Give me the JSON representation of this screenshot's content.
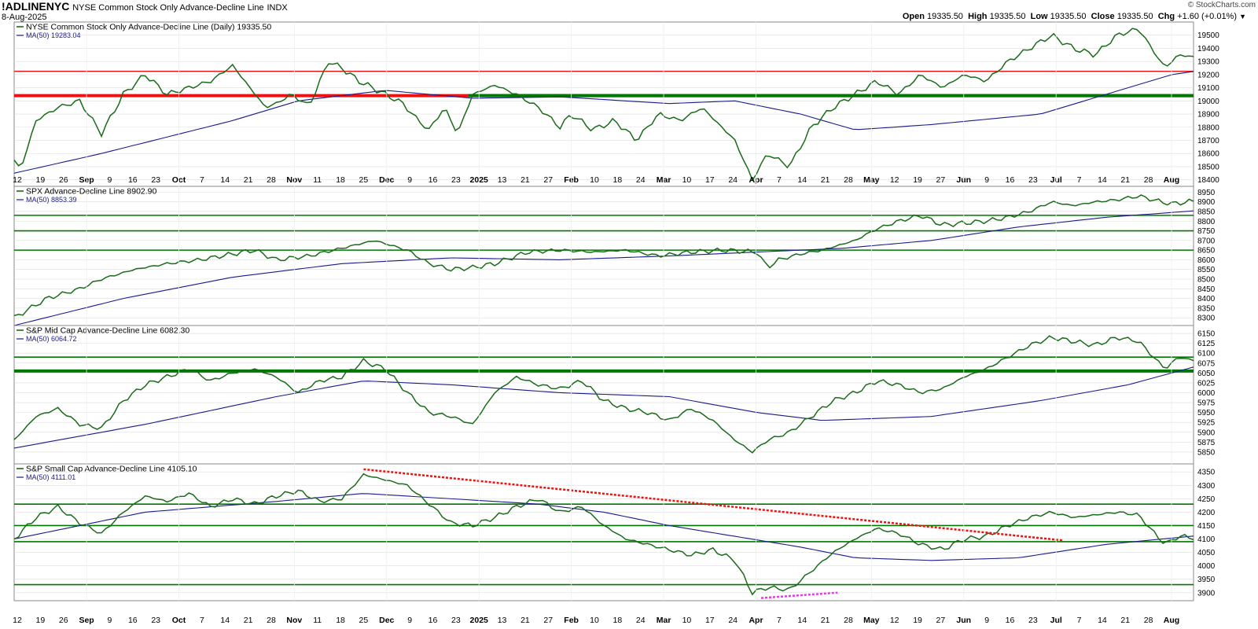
{
  "header": {
    "symbol": "!ADLINENYC",
    "description": "NYSE Common Stock Only Advance-Decline Line",
    "exchange": "INDX",
    "date": "8-Aug-2025",
    "copyright": "© StockCharts.com",
    "ohlc": {
      "open_label": "Open",
      "open": "19335.50",
      "high_label": "High",
      "high": "19335.50",
      "low_label": "Low",
      "low": "19335.50",
      "close_label": "Close",
      "close": "19335.50",
      "chg_label": "Chg",
      "chg": "+1.60 (+0.01%)"
    }
  },
  "colors": {
    "line": "#1a6b1a",
    "ma": "#1a1a8c",
    "support_green": "#007700",
    "resistance_red": "#ee1111",
    "trend_red": "#ee1111",
    "trend_magenta": "#ee33ee",
    "grid": "#dddddd"
  },
  "x_axis": {
    "ticks": [
      "12",
      "19",
      "26",
      "Sep",
      "9",
      "16",
      "23",
      "Oct",
      "7",
      "14",
      "21",
      "28",
      "Nov",
      "11",
      "18",
      "25",
      "Dec",
      "9",
      "16",
      "23",
      "2025",
      "13",
      "21",
      "27",
      "Feb",
      "10",
      "18",
      "24",
      "Mar",
      "10",
      "17",
      "24",
      "Apr",
      "7",
      "14",
      "21",
      "28",
      "May",
      "12",
      "19",
      "27",
      "Jun",
      "9",
      "16",
      "23",
      "Jul",
      "7",
      "14",
      "21",
      "28",
      "Aug"
    ],
    "bold_ticks": [
      "Sep",
      "Oct",
      "Nov",
      "Dec",
      "2025",
      "Feb",
      "Mar",
      "Apr",
      "May",
      "Jun",
      "Jul",
      "Aug"
    ]
  },
  "chart_data": [
    {
      "type": "line",
      "title": "NYSE Common Stock Only Advance-Decline Line (Daily) 19335.50",
      "ma_label": "MA(50) 19283.04",
      "ylim": [
        18350,
        19600
      ],
      "yticks": [
        18400,
        18500,
        18600,
        18700,
        18800,
        18900,
        19000,
        19100,
        19200,
        19300,
        19400,
        19500
      ],
      "anchors": [
        [
          0,
          18550
        ],
        [
          3,
          18480
        ],
        [
          10,
          18850
        ],
        [
          20,
          18950
        ],
        [
          30,
          19000
        ],
        [
          40,
          18750
        ],
        [
          50,
          19050
        ],
        [
          60,
          19200
        ],
        [
          70,
          19050
        ],
        [
          80,
          19100
        ],
        [
          90,
          19150
        ],
        [
          100,
          19270
        ],
        [
          108,
          19100
        ],
        [
          115,
          18950
        ],
        [
          120,
          18980
        ],
        [
          127,
          19050
        ],
        [
          135,
          18960
        ],
        [
          144,
          19300
        ],
        [
          150,
          19250
        ],
        [
          158,
          19150
        ],
        [
          170,
          19050
        ],
        [
          178,
          18980
        ],
        [
          185,
          18850
        ],
        [
          190,
          18780
        ],
        [
          197,
          18950
        ],
        [
          203,
          18750
        ],
        [
          210,
          19050
        ],
        [
          220,
          19120
        ],
        [
          230,
          19050
        ],
        [
          240,
          18950
        ],
        [
          250,
          18800
        ],
        [
          255,
          18900
        ],
        [
          265,
          18780
        ],
        [
          275,
          18850
        ],
        [
          285,
          18700
        ],
        [
          295,
          18900
        ],
        [
          305,
          18850
        ],
        [
          315,
          18950
        ],
        [
          330,
          18700
        ],
        [
          338,
          18400
        ],
        [
          345,
          18600
        ],
        [
          355,
          18500
        ],
        [
          365,
          18800
        ],
        [
          375,
          18950
        ],
        [
          385,
          19050
        ],
        [
          395,
          19150
        ],
        [
          405,
          19050
        ],
        [
          415,
          19200
        ],
        [
          425,
          19100
        ],
        [
          435,
          19200
        ],
        [
          445,
          19150
        ],
        [
          455,
          19300
        ],
        [
          465,
          19400
        ],
        [
          475,
          19500
        ],
        [
          485,
          19400
        ],
        [
          495,
          19350
        ],
        [
          505,
          19500
        ],
        [
          515,
          19550
        ],
        [
          520,
          19420
        ],
        [
          527,
          19250
        ],
        [
          533,
          19350
        ],
        [
          540,
          19335
        ]
      ],
      "ma_anchors": [
        [
          0,
          18450
        ],
        [
          40,
          18600
        ],
        [
          100,
          18850
        ],
        [
          130,
          19000
        ],
        [
          170,
          19080
        ],
        [
          210,
          19020
        ],
        [
          250,
          19030
        ],
        [
          300,
          18980
        ],
        [
          330,
          19000
        ],
        [
          360,
          18900
        ],
        [
          385,
          18780
        ],
        [
          420,
          18820
        ],
        [
          470,
          18900
        ],
        [
          500,
          19050
        ],
        [
          530,
          19200
        ],
        [
          565,
          19283
        ]
      ],
      "hlines": [
        {
          "y": 19225,
          "color": "resistance_red",
          "w": 1.4
        },
        {
          "y": 19040,
          "color": "resistance_red",
          "w": 4
        },
        {
          "y": 19040,
          "color": "support_green",
          "w": 4,
          "x0": 0.385
        }
      ]
    },
    {
      "type": "line",
      "title": "SPX Advance-Decline Line 8902.90",
      "ma_label": "MA(50) 8853.39",
      "ylim": [
        8260,
        8980
      ],
      "yticks": [
        8300,
        8350,
        8400,
        8450,
        8500,
        8550,
        8600,
        8650,
        8700,
        8750,
        8800,
        8850,
        8900,
        8950
      ],
      "anchors": [
        [
          0,
          8300
        ],
        [
          15,
          8400
        ],
        [
          30,
          8450
        ],
        [
          40,
          8500
        ],
        [
          55,
          8550
        ],
        [
          70,
          8580
        ],
        [
          85,
          8600
        ],
        [
          100,
          8630
        ],
        [
          110,
          8650
        ],
        [
          120,
          8600
        ],
        [
          135,
          8620
        ],
        [
          150,
          8660
        ],
        [
          165,
          8700
        ],
        [
          180,
          8650
        ],
        [
          190,
          8580
        ],
        [
          200,
          8550
        ],
        [
          210,
          8560
        ],
        [
          220,
          8580
        ],
        [
          235,
          8640
        ],
        [
          250,
          8650
        ],
        [
          265,
          8640
        ],
        [
          280,
          8650
        ],
        [
          295,
          8620
        ],
        [
          310,
          8640
        ],
        [
          325,
          8650
        ],
        [
          340,
          8640
        ],
        [
          345,
          8560
        ],
        [
          350,
          8600
        ],
        [
          360,
          8630
        ],
        [
          370,
          8650
        ],
        [
          385,
          8700
        ],
        [
          395,
          8760
        ],
        [
          405,
          8800
        ],
        [
          415,
          8830
        ],
        [
          425,
          8780
        ],
        [
          435,
          8790
        ],
        [
          445,
          8800
        ],
        [
          455,
          8820
        ],
        [
          465,
          8850
        ],
        [
          475,
          8900
        ],
        [
          485,
          8880
        ],
        [
          495,
          8900
        ],
        [
          505,
          8910
        ],
        [
          515,
          8930
        ],
        [
          525,
          8900
        ],
        [
          530,
          8890
        ],
        [
          540,
          8903
        ]
      ],
      "ma_anchors": [
        [
          0,
          8260
        ],
        [
          50,
          8400
        ],
        [
          100,
          8510
        ],
        [
          150,
          8580
        ],
        [
          200,
          8610
        ],
        [
          250,
          8600
        ],
        [
          300,
          8620
        ],
        [
          340,
          8640
        ],
        [
          380,
          8660
        ],
        [
          420,
          8700
        ],
        [
          460,
          8770
        ],
        [
          500,
          8820
        ],
        [
          540,
          8853
        ]
      ],
      "hlines": [
        {
          "y": 8830,
          "color": "support_green",
          "w": 1.6
        },
        {
          "y": 8750,
          "color": "support_green",
          "w": 1.6
        },
        {
          "y": 8650,
          "color": "support_green",
          "w": 1.6
        }
      ]
    },
    {
      "type": "line",
      "title": "S&P Mid Cap Advance-Decline Line 6082.30",
      "ma_label": "MA(50) 6064.72",
      "ylim": [
        5820,
        6170
      ],
      "yticks": [
        5850,
        5875,
        5900,
        5925,
        5950,
        5975,
        6000,
        6025,
        6050,
        6075,
        6100,
        6125,
        6150
      ],
      "anchors": [
        [
          0,
          5880
        ],
        [
          10,
          5940
        ],
        [
          20,
          5960
        ],
        [
          30,
          5920
        ],
        [
          40,
          5910
        ],
        [
          50,
          5980
        ],
        [
          60,
          6020
        ],
        [
          70,
          6040
        ],
        [
          80,
          6060
        ],
        [
          90,
          6030
        ],
        [
          100,
          6050
        ],
        [
          110,
          6060
        ],
        [
          120,
          6040
        ],
        [
          130,
          6000
        ],
        [
          140,
          6030
        ],
        [
          150,
          6040
        ],
        [
          160,
          6080
        ],
        [
          170,
          6060
        ],
        [
          180,
          6000
        ],
        [
          190,
          5950
        ],
        [
          200,
          5940
        ],
        [
          210,
          5920
        ],
        [
          220,
          6000
        ],
        [
          230,
          6040
        ],
        [
          240,
          6020
        ],
        [
          250,
          6010
        ],
        [
          260,
          6030
        ],
        [
          270,
          5980
        ],
        [
          280,
          5960
        ],
        [
          290,
          5950
        ],
        [
          300,
          5930
        ],
        [
          310,
          5960
        ],
        [
          320,
          5930
        ],
        [
          330,
          5880
        ],
        [
          338,
          5850
        ],
        [
          345,
          5880
        ],
        [
          355,
          5900
        ],
        [
          365,
          5940
        ],
        [
          375,
          5980
        ],
        [
          385,
          6000
        ],
        [
          395,
          6030
        ],
        [
          405,
          6020
        ],
        [
          415,
          6000
        ],
        [
          425,
          6010
        ],
        [
          435,
          6040
        ],
        [
          445,
          6060
        ],
        [
          455,
          6090
        ],
        [
          465,
          6120
        ],
        [
          475,
          6140
        ],
        [
          485,
          6130
        ],
        [
          495,
          6120
        ],
        [
          505,
          6140
        ],
        [
          515,
          6130
        ],
        [
          520,
          6100
        ],
        [
          527,
          6060
        ],
        [
          533,
          6090
        ],
        [
          540,
          6082
        ]
      ],
      "ma_anchors": [
        [
          0,
          5860
        ],
        [
          60,
          5920
        ],
        [
          120,
          5990
        ],
        [
          160,
          6030
        ],
        [
          200,
          6020
        ],
        [
          250,
          6000
        ],
        [
          300,
          5990
        ],
        [
          340,
          5950
        ],
        [
          370,
          5930
        ],
        [
          420,
          5940
        ],
        [
          470,
          5980
        ],
        [
          510,
          6020
        ],
        [
          540,
          6065
        ]
      ],
      "hlines": [
        {
          "y": 6090,
          "color": "support_green",
          "w": 1.6
        },
        {
          "y": 6055,
          "color": "support_green",
          "w": 4
        }
      ]
    },
    {
      "type": "line",
      "title": "S&P Small Cap Advance-Decline Line 4105.10",
      "ma_label": "MA(50) 4111.01",
      "ylim": [
        3870,
        4380
      ],
      "yticks": [
        3900,
        3950,
        4000,
        4050,
        4100,
        4150,
        4200,
        4250,
        4300,
        4350
      ],
      "anchors": [
        [
          0,
          4100
        ],
        [
          10,
          4180
        ],
        [
          20,
          4220
        ],
        [
          30,
          4160
        ],
        [
          40,
          4120
        ],
        [
          50,
          4200
        ],
        [
          60,
          4260
        ],
        [
          70,
          4240
        ],
        [
          80,
          4270
        ],
        [
          90,
          4220
        ],
        [
          100,
          4250
        ],
        [
          110,
          4230
        ],
        [
          120,
          4260
        ],
        [
          130,
          4280
        ],
        [
          140,
          4240
        ],
        [
          150,
          4250
        ],
        [
          160,
          4340
        ],
        [
          170,
          4320
        ],
        [
          180,
          4300
        ],
        [
          190,
          4230
        ],
        [
          200,
          4160
        ],
        [
          210,
          4150
        ],
        [
          220,
          4180
        ],
        [
          230,
          4220
        ],
        [
          240,
          4250
        ],
        [
          250,
          4200
        ],
        [
          260,
          4220
        ],
        [
          270,
          4150
        ],
        [
          280,
          4100
        ],
        [
          290,
          4080
        ],
        [
          300,
          4060
        ],
        [
          310,
          4040
        ],
        [
          320,
          4060
        ],
        [
          330,
          4020
        ],
        [
          338,
          3900
        ],
        [
          345,
          3920
        ],
        [
          355,
          3910
        ],
        [
          365,
          3980
        ],
        [
          375,
          4050
        ],
        [
          385,
          4100
        ],
        [
          395,
          4140
        ],
        [
          405,
          4120
        ],
        [
          415,
          4080
        ],
        [
          425,
          4060
        ],
        [
          435,
          4100
        ],
        [
          445,
          4110
        ],
        [
          455,
          4150
        ],
        [
          465,
          4180
        ],
        [
          475,
          4200
        ],
        [
          485,
          4180
        ],
        [
          495,
          4190
        ],
        [
          505,
          4200
        ],
        [
          515,
          4190
        ],
        [
          520,
          4140
        ],
        [
          527,
          4080
        ],
        [
          533,
          4110
        ],
        [
          540,
          4105
        ]
      ],
      "ma_anchors": [
        [
          0,
          4100
        ],
        [
          60,
          4200
        ],
        [
          120,
          4240
        ],
        [
          160,
          4270
        ],
        [
          200,
          4250
        ],
        [
          240,
          4230
        ],
        [
          270,
          4200
        ],
        [
          300,
          4150
        ],
        [
          330,
          4110
        ],
        [
          360,
          4070
        ],
        [
          385,
          4030
        ],
        [
          420,
          4020
        ],
        [
          460,
          4030
        ],
        [
          500,
          4080
        ],
        [
          540,
          4111
        ]
      ],
      "hlines": [
        {
          "y": 4230,
          "color": "support_green",
          "w": 1.6
        },
        {
          "y": 4150,
          "color": "support_green",
          "w": 1.6
        },
        {
          "y": 4090,
          "color": "support_green",
          "w": 1.6
        },
        {
          "y": 3930,
          "color": "support_green",
          "w": 1.6
        }
      ],
      "trendlines": [
        {
          "from": [
            160,
            4360
          ],
          "to": [
            480,
            4095
          ],
          "color": "trend_red"
        },
        {
          "from": [
            342,
            3880
          ],
          "to": [
            377,
            3900
          ],
          "color": "trend_magenta"
        }
      ]
    }
  ]
}
